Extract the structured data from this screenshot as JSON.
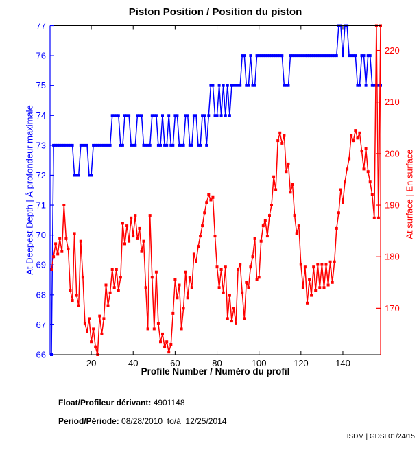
{
  "title": "Piston Position / Position du piston",
  "footer": {
    "float_label": "Float/Profileur dérivant:",
    "float_value": " 4901148",
    "period_label": "Period/Période:",
    "period_value": " 08/28/2010  to/à  12/25/2014",
    "credit": "ISDM | GDSI 01/24/15"
  },
  "colors": {
    "blue": "#0000ff",
    "red": "#ff0000",
    "frame": "#000000"
  },
  "chart_data": {
    "type": "line",
    "title": "Piston Position / Position du piston",
    "xlabel": "Profile Number / Numéro du profil",
    "x_start": 1,
    "x_ticks": [
      20,
      40,
      60,
      80,
      100,
      120,
      140
    ],
    "x_range": [
      1,
      158
    ],
    "grid": false,
    "legend_position": "none",
    "left_axis": {
      "label": "At Deepest Depth | À profondeur maximale",
      "color": "#0000ff",
      "range": [
        66,
        77
      ],
      "ticks": [
        66,
        67,
        68,
        69,
        70,
        71,
        72,
        73,
        74,
        75,
        76,
        77
      ]
    },
    "right_axis": {
      "label": "At surface | En surface",
      "color": "#ff0000",
      "range": [
        161,
        224.8
      ],
      "ticks": [
        170,
        180,
        190,
        200,
        210,
        220
      ]
    },
    "series": [
      {
        "name": "At Deepest Depth | À profondeur maximale",
        "axis": "left",
        "color": "#0000ff",
        "marker": "square",
        "values": [
          66,
          73,
          73,
          73,
          73,
          73,
          73,
          73,
          73,
          73,
          73,
          72,
          72,
          72,
          73,
          73,
          73,
          73,
          72,
          72,
          73,
          73,
          73,
          73,
          73,
          73,
          73,
          73,
          73,
          74,
          74,
          74,
          74,
          73,
          73,
          74,
          74,
          74,
          73,
          73,
          73,
          74,
          74,
          74,
          73,
          73,
          73,
          73,
          74,
          74,
          74,
          73,
          73,
          74,
          73,
          73,
          74,
          73,
          73,
          74,
          74,
          73,
          73,
          73,
          74,
          74,
          73,
          73,
          74,
          74,
          73,
          73,
          74,
          74,
          73,
          74,
          75,
          75,
          74,
          74,
          75,
          74,
          75,
          74,
          75,
          74,
          75,
          75,
          75,
          75,
          75,
          76,
          76,
          75,
          75,
          76,
          75,
          75,
          76,
          76,
          76,
          76,
          76,
          76,
          76,
          76,
          76,
          76,
          76,
          76,
          76,
          75,
          75,
          75,
          76,
          76,
          76,
          76,
          76,
          76,
          76,
          76,
          76,
          76,
          76,
          76,
          76,
          76,
          76,
          76,
          76,
          76,
          76,
          76,
          76,
          76,
          76,
          77,
          77,
          76,
          77,
          77,
          76,
          76,
          76,
          76,
          75,
          75,
          76,
          76,
          75,
          76,
          76,
          75,
          75,
          75,
          75,
          75
        ]
      },
      {
        "name": "At surface | En surface",
        "axis": "right",
        "color": "#ff0000",
        "marker": "square",
        "values": [
          177.5,
          180,
          182.5,
          180.5,
          183.5,
          181,
          190,
          183.5,
          181.5,
          173.5,
          171.5,
          184.5,
          172.5,
          170.5,
          183,
          176,
          167,
          165.5,
          168,
          163.5,
          166,
          162.5,
          161,
          168.5,
          165,
          168,
          174.5,
          170.5,
          173,
          177.5,
          174,
          177.5,
          173.5,
          176,
          186.5,
          182.5,
          186,
          183,
          187.5,
          184,
          188,
          183.5,
          185.5,
          181,
          183,
          174,
          166,
          188,
          176,
          166,
          177,
          167,
          163.5,
          165,
          162.5,
          163.5,
          161.5,
          163,
          169,
          175.5,
          172,
          174.5,
          166,
          170,
          177,
          172,
          176,
          174,
          180.5,
          179,
          182,
          184,
          186,
          188.5,
          190.5,
          192,
          191,
          191.5,
          184,
          178,
          174,
          177.5,
          173,
          178,
          168,
          172.5,
          167.5,
          170,
          167,
          177.5,
          178.5,
          173,
          168,
          175,
          174,
          178,
          180,
          183.5,
          175.5,
          176,
          183,
          186,
          187,
          184,
          188,
          190,
          195.5,
          193,
          202.5,
          204,
          202,
          203.5,
          196.5,
          198,
          192.5,
          194,
          188,
          184.5,
          186,
          178.5,
          174,
          178,
          171,
          175.5,
          172.5,
          178,
          173.5,
          178.5,
          174,
          178.5,
          174,
          178.5,
          174.5,
          179,
          175,
          179,
          185.5,
          188.5,
          193,
          190.5,
          194.5,
          197,
          199,
          203.5,
          202.5,
          204.5,
          203,
          204,
          200.5,
          197,
          201,
          196.5,
          194.5,
          192,
          187.5,
          224.8,
          187.5,
          224.8
        ]
      }
    ]
  }
}
